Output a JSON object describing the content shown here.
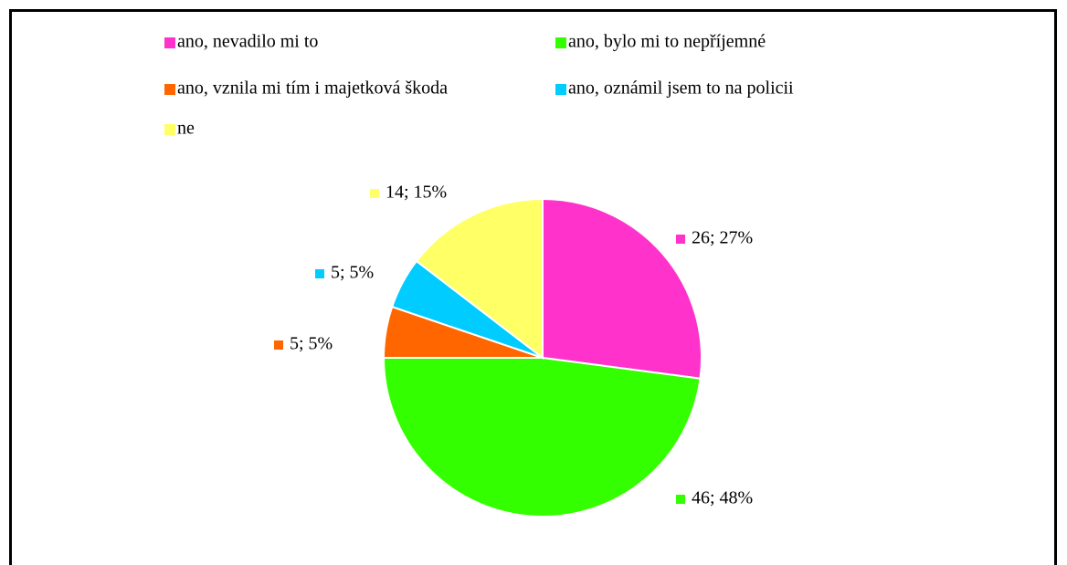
{
  "chart_data": {
    "type": "pie",
    "categories": [
      "ano, nevadilo mi to",
      "ano, bylo mi to nepříjemné",
      "ano, vznila mi tím i majetková škoda",
      "ano, oznámil jsem to na policii",
      "ne"
    ],
    "values": [
      26,
      46,
      5,
      5,
      14
    ],
    "value_labels": [
      "26; 27%",
      "46; 48%",
      "5; 5%",
      "5; 5%",
      "14; 15%"
    ],
    "colors": [
      "#ff33cc",
      "#33ff00",
      "#ff6600",
      "#00ccff",
      "#ffff66"
    ]
  }
}
